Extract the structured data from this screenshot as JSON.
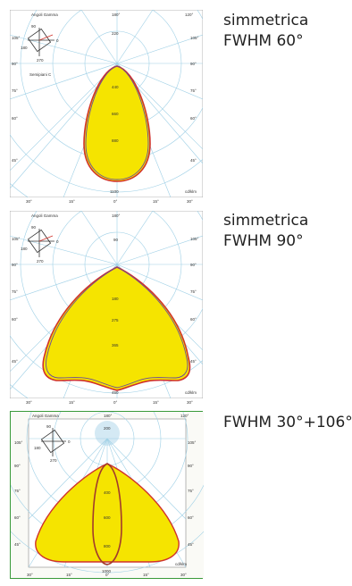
{
  "captions": [
    {
      "line1": "simmetrica",
      "line2": "FWHM 60°"
    },
    {
      "line1": "simmetrica",
      "line2": "FWHM 90°"
    },
    {
      "line1": "FWHM 30°+106°",
      "line2": ""
    }
  ],
  "panels": [
    {
      "header_left": "Angoli Gamma",
      "header_center": "180°",
      "header_right": "120°",
      "axis_right": "cd/klm",
      "legend_note": "Semipiani C",
      "radial_labels": [
        "220",
        "440",
        "660",
        "880",
        "1100"
      ],
      "left_angles": [
        "105°",
        "90°",
        "75°",
        "60°",
        "45°"
      ],
      "right_angles": [
        "105°",
        "90°",
        "75°",
        "60°",
        "45°"
      ],
      "bottom_angles": [
        "30°",
        "15°",
        "0°",
        "15°",
        "30°"
      ],
      "legend_letters": [
        "90",
        "0",
        "180",
        "270"
      ]
    },
    {
      "header_left": "Angoli Gamma",
      "header_center": "180°",
      "header_right": "",
      "axis_right": "cd/klm",
      "legend_note": "",
      "radial_labels": [
        "90",
        "180",
        "275",
        "365",
        "450"
      ],
      "left_angles": [
        "105°",
        "90°",
        "75°",
        "60°",
        "45°"
      ],
      "right_angles": [
        "105°",
        "90°",
        "75°",
        "60°",
        "45°"
      ],
      "bottom_angles": [
        "30°",
        "15°",
        "0°",
        "15°",
        "30°"
      ],
      "legend_letters": [
        "90",
        "0",
        "180",
        "270"
      ]
    },
    {
      "header_left": "Angoli Gamma",
      "header_center": "180°",
      "header_right": "120°",
      "axis_right": "cd/klm",
      "legend_note": "",
      "radial_labels": [
        "200",
        "400",
        "600",
        "800",
        "1000"
      ],
      "left_angles": [
        "105°",
        "90°",
        "75°",
        "60°",
        "45°"
      ],
      "right_angles": [
        "105°",
        "90°",
        "75°",
        "60°",
        "45°"
      ],
      "bottom_angles": [
        "30°",
        "15°",
        "0°",
        "15°",
        "30°"
      ],
      "legend_letters": [
        "90",
        "0",
        "180",
        "270"
      ]
    }
  ],
  "colors": {
    "fill": "#f5e400",
    "curve_c0": "#d0322a",
    "curve_c90": "#6a4a9a",
    "grid": "#9fd0e6",
    "frame": "#3a9a3a"
  }
}
